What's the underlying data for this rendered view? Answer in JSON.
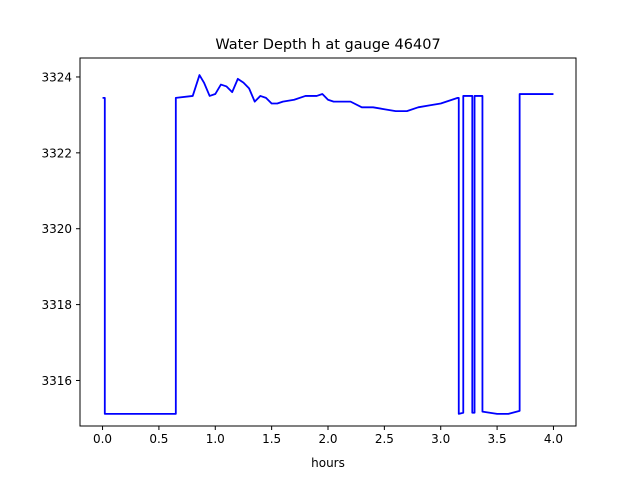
{
  "chart_data": {
    "type": "line",
    "title": "Water Depth h at gauge 46407",
    "xlabel": "hours",
    "ylabel": "",
    "xlim": [
      -0.2,
      4.2
    ],
    "ylim": [
      3314.8,
      3324.5
    ],
    "xticks": [
      0.0,
      0.5,
      1.0,
      1.5,
      2.0,
      2.5,
      3.0,
      3.5,
      4.0
    ],
    "xtick_labels": [
      "0.0",
      "0.5",
      "1.0",
      "1.5",
      "2.0",
      "2.5",
      "3.0",
      "3.5",
      "4.0"
    ],
    "yticks": [
      3316,
      3318,
      3320,
      3322,
      3324
    ],
    "ytick_labels": [
      "3316",
      "3318",
      "3320",
      "3322",
      "3324"
    ],
    "grid": false,
    "legend": "none",
    "series": [
      {
        "color": "#0000ff",
        "x": [
          0.0,
          0.02,
          0.02,
          0.3,
          0.64,
          0.65,
          0.65,
          0.8,
          0.86,
          0.9,
          0.95,
          1.0,
          1.05,
          1.1,
          1.15,
          1.2,
          1.25,
          1.3,
          1.35,
          1.4,
          1.45,
          1.5,
          1.55,
          1.6,
          1.7,
          1.8,
          1.9,
          1.95,
          2.0,
          2.05,
          2.1,
          2.2,
          2.3,
          2.4,
          2.5,
          2.6,
          2.7,
          2.8,
          2.9,
          3.0,
          3.1,
          3.15,
          3.16,
          3.16,
          3.2,
          3.2,
          3.27,
          3.28,
          3.28,
          3.3,
          3.3,
          3.36,
          3.37,
          3.37,
          3.5,
          3.6,
          3.7,
          3.7,
          3.8,
          3.9,
          4.0
        ],
        "y": [
          3323.45,
          3323.45,
          3315.12,
          3315.12,
          3315.12,
          3315.12,
          3323.45,
          3323.5,
          3324.05,
          3323.85,
          3323.5,
          3323.55,
          3323.8,
          3323.75,
          3323.6,
          3323.95,
          3323.85,
          3323.7,
          3323.35,
          3323.5,
          3323.45,
          3323.3,
          3323.3,
          3323.35,
          3323.4,
          3323.5,
          3323.5,
          3323.55,
          3323.4,
          3323.35,
          3323.35,
          3323.35,
          3323.2,
          3323.2,
          3323.15,
          3323.1,
          3323.1,
          3323.2,
          3323.25,
          3323.3,
          3323.4,
          3323.45,
          3323.45,
          3315.12,
          3315.15,
          3323.5,
          3323.5,
          3323.5,
          3315.15,
          3315.15,
          3323.5,
          3323.5,
          3323.5,
          3315.18,
          3315.12,
          3315.12,
          3315.2,
          3323.55,
          3323.55,
          3323.55,
          3323.55
        ]
      }
    ]
  }
}
